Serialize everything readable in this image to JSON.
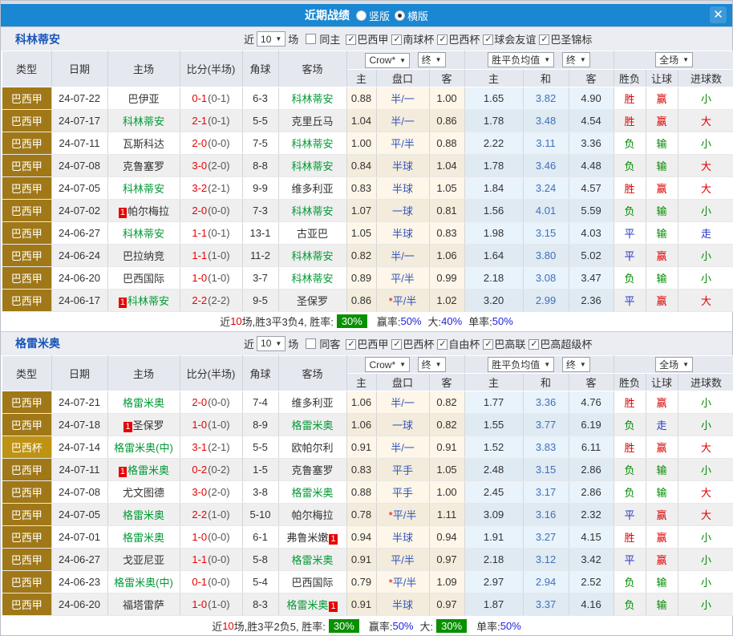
{
  "title_bar": {
    "title": "近期战绩",
    "radio_vertical": "竖版",
    "radio_horizontal": "横版"
  },
  "icons": {
    "dropdown": "▼",
    "close": "✕"
  },
  "colors": {
    "title_bar_blue": "#1987d2",
    "league_gold": "#a07818",
    "cup_gold": "#be9313",
    "team_green": "#009933",
    "score_red": "#e80000",
    "handicap_blue": "#3355bb",
    "avg_blue": "#3f6fba",
    "win_red": "#e00000",
    "lose_green": "#008a00",
    "draw_blue": "#2535c8",
    "rate_badge_green": "#089000"
  },
  "filter_labels": {
    "recent": "近",
    "matches": "场"
  },
  "header_labels": {
    "type": "类型",
    "date": "日期",
    "home": "主场",
    "score": "比分(半场)",
    "corner": "角球",
    "away": "客场",
    "crow": "Crow*",
    "final": "终",
    "avg_group": "胜平负均值",
    "fullmatch": "全场",
    "odds_home": "主",
    "handicap": "盘口",
    "odds_away": "客",
    "avg_home": "主",
    "avg_draw": "和",
    "avg_away": "客",
    "result": "胜负",
    "handicap_result": "让球",
    "goals": "进球数"
  },
  "sections": [
    {
      "team": "科林蒂安",
      "filter": {
        "count": "10",
        "same": "同主",
        "same_checked": false,
        "leagues": [
          "巴西甲",
          "南球杯",
          "巴西杯",
          "球会友谊",
          "巴圣锦标"
        ]
      },
      "rows": [
        {
          "type": "巴西甲",
          "cup": false,
          "date": "24-07-22",
          "home": {
            "name": "巴伊亚",
            "green": false,
            "badge": "",
            "badge_pos": ""
          },
          "score_ft": "0-1",
          "score_ht": "(0-1)",
          "corner": "6-3",
          "away": {
            "name": "科林蒂安",
            "green": true,
            "badge": "",
            "badge_pos": ""
          },
          "odds_home": "0.88",
          "star": "",
          "handicap": "半/一",
          "odds_away": "1.00",
          "avg": [
            "1.65",
            "3.82",
            "4.90"
          ],
          "outcome": [
            "胜",
            "赢",
            "小"
          ]
        },
        {
          "type": "巴西甲",
          "cup": false,
          "date": "24-07-17",
          "home": {
            "name": "科林蒂安",
            "green": true,
            "badge": "",
            "badge_pos": ""
          },
          "score_ft": "2-1",
          "score_ht": "(0-1)",
          "corner": "5-5",
          "away": {
            "name": "克里丘马",
            "green": false,
            "badge": "",
            "badge_pos": ""
          },
          "odds_home": "1.04",
          "star": "",
          "handicap": "半/一",
          "odds_away": "0.86",
          "avg": [
            "1.78",
            "3.48",
            "4.54"
          ],
          "outcome": [
            "胜",
            "赢",
            "大"
          ]
        },
        {
          "type": "巴西甲",
          "cup": false,
          "date": "24-07-11",
          "home": {
            "name": "瓦斯科达",
            "green": false,
            "badge": "",
            "badge_pos": ""
          },
          "score_ft": "2-0",
          "score_ht": "(0-0)",
          "corner": "7-5",
          "away": {
            "name": "科林蒂安",
            "green": true,
            "badge": "",
            "badge_pos": ""
          },
          "odds_home": "1.00",
          "star": "",
          "handicap": "平/半",
          "odds_away": "0.88",
          "avg": [
            "2.22",
            "3.11",
            "3.36"
          ],
          "outcome": [
            "负",
            "输",
            "小"
          ]
        },
        {
          "type": "巴西甲",
          "cup": false,
          "date": "24-07-08",
          "home": {
            "name": "克鲁塞罗",
            "green": false,
            "badge": "",
            "badge_pos": ""
          },
          "score_ft": "3-0",
          "score_ht": "(2-0)",
          "corner": "8-8",
          "away": {
            "name": "科林蒂安",
            "green": true,
            "badge": "",
            "badge_pos": ""
          },
          "odds_home": "0.84",
          "star": "",
          "handicap": "半球",
          "odds_away": "1.04",
          "avg": [
            "1.78",
            "3.46",
            "4.48"
          ],
          "outcome": [
            "负",
            "输",
            "大"
          ]
        },
        {
          "type": "巴西甲",
          "cup": false,
          "date": "24-07-05",
          "home": {
            "name": "科林蒂安",
            "green": true,
            "badge": "",
            "badge_pos": ""
          },
          "score_ft": "3-2",
          "score_ht": "(2-1)",
          "corner": "9-9",
          "away": {
            "name": "维多利亚",
            "green": false,
            "badge": "",
            "badge_pos": ""
          },
          "odds_home": "0.83",
          "star": "",
          "handicap": "半球",
          "odds_away": "1.05",
          "avg": [
            "1.84",
            "3.24",
            "4.57"
          ],
          "outcome": [
            "胜",
            "赢",
            "大"
          ]
        },
        {
          "type": "巴西甲",
          "cup": false,
          "date": "24-07-02",
          "home": {
            "name": "帕尔梅拉",
            "green": false,
            "badge": "1",
            "badge_pos": "before"
          },
          "score_ft": "2-0",
          "score_ht": "(0-0)",
          "corner": "7-3",
          "away": {
            "name": "科林蒂安",
            "green": true,
            "badge": "",
            "badge_pos": ""
          },
          "odds_home": "1.07",
          "star": "",
          "handicap": "一球",
          "odds_away": "0.81",
          "avg": [
            "1.56",
            "4.01",
            "5.59"
          ],
          "outcome": [
            "负",
            "输",
            "小"
          ]
        },
        {
          "type": "巴西甲",
          "cup": false,
          "date": "24-06-27",
          "home": {
            "name": "科林蒂安",
            "green": true,
            "badge": "",
            "badge_pos": ""
          },
          "score_ft": "1-1",
          "score_ht": "(0-1)",
          "corner": "13-1",
          "away": {
            "name": "古亚巴",
            "green": false,
            "badge": "",
            "badge_pos": ""
          },
          "odds_home": "1.05",
          "star": "",
          "handicap": "半球",
          "odds_away": "0.83",
          "avg": [
            "1.98",
            "3.15",
            "4.03"
          ],
          "outcome": [
            "平",
            "输",
            "走"
          ]
        },
        {
          "type": "巴西甲",
          "cup": false,
          "date": "24-06-24",
          "home": {
            "name": "巴拉纳竞",
            "green": false,
            "badge": "",
            "badge_pos": ""
          },
          "score_ft": "1-1",
          "score_ht": "(1-0)",
          "corner": "11-2",
          "away": {
            "name": "科林蒂安",
            "green": true,
            "badge": "",
            "badge_pos": ""
          },
          "odds_home": "0.82",
          "star": "",
          "handicap": "半/一",
          "odds_away": "1.06",
          "avg": [
            "1.64",
            "3.80",
            "5.02"
          ],
          "outcome": [
            "平",
            "赢",
            "小"
          ]
        },
        {
          "type": "巴西甲",
          "cup": false,
          "date": "24-06-20",
          "home": {
            "name": "巴西国际",
            "green": false,
            "badge": "",
            "badge_pos": ""
          },
          "score_ft": "1-0",
          "score_ht": "(1-0)",
          "corner": "3-7",
          "away": {
            "name": "科林蒂安",
            "green": true,
            "badge": "",
            "badge_pos": ""
          },
          "odds_home": "0.89",
          "star": "",
          "handicap": "平/半",
          "odds_away": "0.99",
          "avg": [
            "2.18",
            "3.08",
            "3.47"
          ],
          "outcome": [
            "负",
            "输",
            "小"
          ]
        },
        {
          "type": "巴西甲",
          "cup": false,
          "date": "24-06-17",
          "home": {
            "name": "科林蒂安",
            "green": true,
            "badge": "1",
            "badge_pos": "before"
          },
          "score_ft": "2-2",
          "score_ht": "(2-2)",
          "corner": "9-5",
          "away": {
            "name": "圣保罗",
            "green": false,
            "badge": "",
            "badge_pos": ""
          },
          "odds_home": "0.86",
          "star": "*",
          "handicap": "平/半",
          "odds_away": "1.02",
          "avg": [
            "3.20",
            "2.99",
            "2.36"
          ],
          "outcome": [
            "平",
            "赢",
            "大"
          ]
        }
      ],
      "summary": {
        "text1": "近",
        "num": "10",
        "text2": "场,胜3平3负4, 胜率:",
        "rate_badge": "30%",
        "parts": [
          {
            "label": "赢率:",
            "value": "50%",
            "badge": false
          },
          {
            "label": "大:",
            "value": "40%",
            "badge": false
          },
          {
            "label": "单率:",
            "value": "50%",
            "badge": false
          }
        ]
      }
    },
    {
      "team": "格雷米奥",
      "filter": {
        "count": "10",
        "same": "同客",
        "same_checked": false,
        "leagues": [
          "巴西甲",
          "巴西杯",
          "自由杯",
          "巴高联",
          "巴高超级杯"
        ]
      },
      "rows": [
        {
          "type": "巴西甲",
          "cup": false,
          "date": "24-07-21",
          "home": {
            "name": "格雷米奥",
            "green": true,
            "badge": "",
            "badge_pos": ""
          },
          "score_ft": "2-0",
          "score_ht": "(0-0)",
          "corner": "7-4",
          "away": {
            "name": "维多利亚",
            "green": false,
            "badge": "",
            "badge_pos": ""
          },
          "odds_home": "1.06",
          "star": "",
          "handicap": "半/一",
          "odds_away": "0.82",
          "avg": [
            "1.77",
            "3.36",
            "4.76"
          ],
          "outcome": [
            "胜",
            "赢",
            "小"
          ]
        },
        {
          "type": "巴西甲",
          "cup": false,
          "date": "24-07-18",
          "home": {
            "name": "圣保罗",
            "green": false,
            "badge": "1",
            "badge_pos": "before"
          },
          "score_ft": "1-0",
          "score_ht": "(1-0)",
          "corner": "8-9",
          "away": {
            "name": "格雷米奥",
            "green": true,
            "badge": "",
            "badge_pos": ""
          },
          "odds_home": "1.06",
          "star": "",
          "handicap": "一球",
          "odds_away": "0.82",
          "avg": [
            "1.55",
            "3.77",
            "6.19"
          ],
          "outcome": [
            "负",
            "走",
            "小"
          ]
        },
        {
          "type": "巴西杯",
          "cup": true,
          "date": "24-07-14",
          "home": {
            "name": "格雷米奥(中)",
            "green": true,
            "badge": "",
            "badge_pos": ""
          },
          "score_ft": "3-1",
          "score_ht": "(2-1)",
          "corner": "5-5",
          "away": {
            "name": "欧帕尔利",
            "green": false,
            "badge": "",
            "badge_pos": ""
          },
          "odds_home": "0.91",
          "star": "",
          "handicap": "半/一",
          "odds_away": "0.91",
          "avg": [
            "1.52",
            "3.83",
            "6.11"
          ],
          "outcome": [
            "胜",
            "赢",
            "大"
          ]
        },
        {
          "type": "巴西甲",
          "cup": false,
          "date": "24-07-11",
          "home": {
            "name": "格雷米奥",
            "green": true,
            "badge": "1",
            "badge_pos": "before"
          },
          "score_ft": "0-2",
          "score_ht": "(0-2)",
          "corner": "1-5",
          "away": {
            "name": "克鲁塞罗",
            "green": false,
            "badge": "",
            "badge_pos": ""
          },
          "odds_home": "0.83",
          "star": "",
          "handicap": "平手",
          "odds_away": "1.05",
          "avg": [
            "2.48",
            "3.15",
            "2.86"
          ],
          "outcome": [
            "负",
            "输",
            "小"
          ]
        },
        {
          "type": "巴西甲",
          "cup": false,
          "date": "24-07-08",
          "home": {
            "name": "尤文图德",
            "green": false,
            "badge": "",
            "badge_pos": ""
          },
          "score_ft": "3-0",
          "score_ht": "(2-0)",
          "corner": "3-8",
          "away": {
            "name": "格雷米奥",
            "green": true,
            "badge": "",
            "badge_pos": ""
          },
          "odds_home": "0.88",
          "star": "",
          "handicap": "平手",
          "odds_away": "1.00",
          "avg": [
            "2.45",
            "3.17",
            "2.86"
          ],
          "outcome": [
            "负",
            "输",
            "大"
          ]
        },
        {
          "type": "巴西甲",
          "cup": false,
          "date": "24-07-05",
          "home": {
            "name": "格雷米奥",
            "green": true,
            "badge": "",
            "badge_pos": ""
          },
          "score_ft": "2-2",
          "score_ht": "(1-0)",
          "corner": "5-10",
          "away": {
            "name": "帕尔梅拉",
            "green": false,
            "badge": "",
            "badge_pos": ""
          },
          "odds_home": "0.78",
          "star": "*",
          "handicap": "平/半",
          "odds_away": "1.11",
          "avg": [
            "3.09",
            "3.16",
            "2.32"
          ],
          "outcome": [
            "平",
            "赢",
            "大"
          ]
        },
        {
          "type": "巴西甲",
          "cup": false,
          "date": "24-07-01",
          "home": {
            "name": "格雷米奥",
            "green": true,
            "badge": "",
            "badge_pos": ""
          },
          "score_ft": "1-0",
          "score_ht": "(0-0)",
          "corner": "6-1",
          "away": {
            "name": "弗鲁米嫩",
            "green": false,
            "badge": "1",
            "badge_pos": "after"
          },
          "odds_home": "0.94",
          "star": "",
          "handicap": "半球",
          "odds_away": "0.94",
          "avg": [
            "1.91",
            "3.27",
            "4.15"
          ],
          "outcome": [
            "胜",
            "赢",
            "小"
          ]
        },
        {
          "type": "巴西甲",
          "cup": false,
          "date": "24-06-27",
          "home": {
            "name": "戈亚尼亚",
            "green": false,
            "badge": "",
            "badge_pos": ""
          },
          "score_ft": "1-1",
          "score_ht": "(0-0)",
          "corner": "5-8",
          "away": {
            "name": "格雷米奥",
            "green": true,
            "badge": "",
            "badge_pos": ""
          },
          "odds_home": "0.91",
          "star": "",
          "handicap": "平/半",
          "odds_away": "0.97",
          "avg": [
            "2.18",
            "3.12",
            "3.42"
          ],
          "outcome": [
            "平",
            "赢",
            "小"
          ]
        },
        {
          "type": "巴西甲",
          "cup": false,
          "date": "24-06-23",
          "home": {
            "name": "格雷米奥(中)",
            "green": true,
            "badge": "",
            "badge_pos": ""
          },
          "score_ft": "0-1",
          "score_ht": "(0-0)",
          "corner": "5-4",
          "away": {
            "name": "巴西国际",
            "green": false,
            "badge": "",
            "badge_pos": ""
          },
          "odds_home": "0.79",
          "star": "*",
          "handicap": "平/半",
          "odds_away": "1.09",
          "avg": [
            "2.97",
            "2.94",
            "2.52"
          ],
          "outcome": [
            "负",
            "输",
            "小"
          ]
        },
        {
          "type": "巴西甲",
          "cup": false,
          "date": "24-06-20",
          "home": {
            "name": "福塔雷萨",
            "green": false,
            "badge": "",
            "badge_pos": ""
          },
          "score_ft": "1-0",
          "score_ht": "(1-0)",
          "corner": "8-3",
          "away": {
            "name": "格雷米奥",
            "green": true,
            "badge": "1",
            "badge_pos": "after"
          },
          "odds_home": "0.91",
          "star": "",
          "handicap": "半球",
          "odds_away": "0.97",
          "avg": [
            "1.87",
            "3.37",
            "4.16"
          ],
          "outcome": [
            "负",
            "输",
            "小"
          ]
        }
      ],
      "summary": {
        "text1": "近",
        "num": "10",
        "text2": "场,胜3平2负5, 胜率:",
        "rate_badge": "30%",
        "parts": [
          {
            "label": "赢率:",
            "value": "50%",
            "badge": false
          },
          {
            "label": "大:",
            "value": "30%",
            "badge": true
          },
          {
            "label": "单率:",
            "value": "50%",
            "badge": false
          }
        ]
      }
    }
  ]
}
